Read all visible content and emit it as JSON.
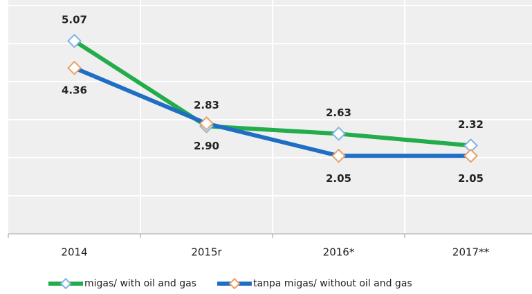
{
  "chart_data": {
    "type": "line",
    "categories": [
      "2014",
      "2015r",
      "2016*",
      "2017**"
    ],
    "series": [
      {
        "name": "migas/ with oil and gas",
        "color": "#22ac4b",
        "marker_color": "#7fb4e2",
        "values": [
          5.07,
          2.83,
          2.63,
          2.32
        ],
        "value_labels": [
          "5.07",
          "2.83",
          "2.63",
          "2.32"
        ],
        "label_position": "above"
      },
      {
        "name": "tanpa migas/ without oil and gas",
        "color": "#1f6ec4",
        "marker_color": "#e9a066",
        "values": [
          4.36,
          2.9,
          2.05,
          2.05
        ],
        "value_labels": [
          "4.36",
          "2.90",
          "2.05",
          "2.05"
        ],
        "label_position": "below"
      }
    ],
    "ylim": [
      0,
      6
    ],
    "yticks": [
      0,
      1,
      2,
      3,
      4,
      5,
      6
    ],
    "grid": true
  }
}
